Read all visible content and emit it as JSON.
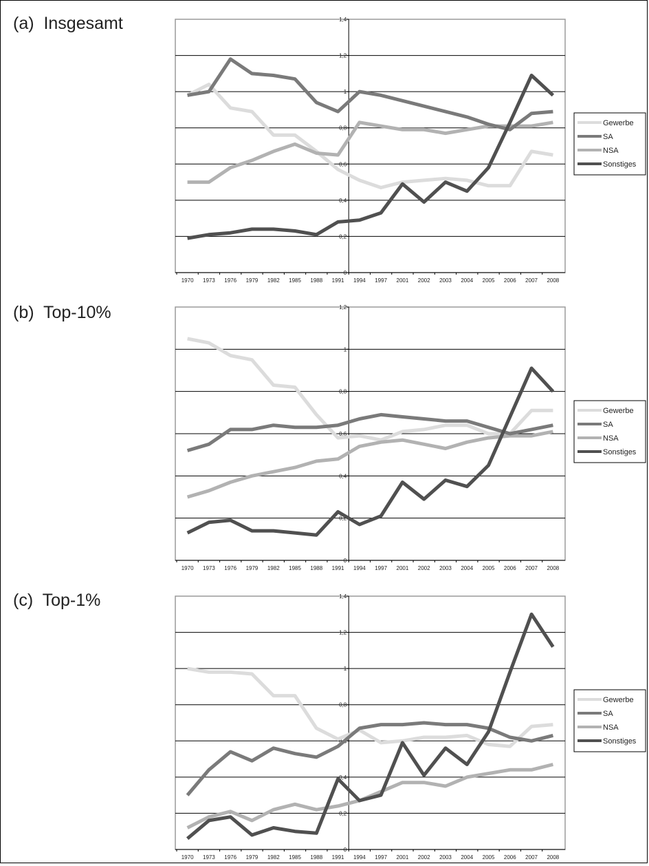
{
  "panels": [
    {
      "label": "(a)  Insgesamt"
    },
    {
      "label": "(b)  Top-10%"
    },
    {
      "label": "(c)  Top-1%"
    }
  ],
  "colors": {
    "Gewerbe": "#dcdcdc",
    "SA": "#7a7a7a",
    "NSA": "#b2b2b2",
    "Sonstiges": "#505050",
    "grid": "#000000",
    "border": "#9a9a9a"
  },
  "chart_data": [
    {
      "type": "line",
      "title": "",
      "ylim": [
        0,
        1.4
      ],
      "yticks": [
        "0",
        "0,2",
        "0,4",
        "0,6",
        "0,8",
        "1",
        "1,2",
        "1,4"
      ],
      "categories": [
        "1970",
        "1973",
        "1976",
        "1979",
        "1982",
        "1985",
        "1988",
        "1991",
        "1994",
        "1997",
        "2001",
        "2002",
        "2003",
        "2004",
        "2005",
        "2006",
        "2007",
        "2008"
      ],
      "grid": true,
      "legend": "right",
      "series": [
        {
          "name": "Gewerbe",
          "values": [
            0.98,
            1.04,
            0.91,
            0.89,
            0.76,
            0.76,
            0.67,
            0.57,
            0.51,
            0.47,
            0.5,
            0.51,
            0.52,
            0.51,
            0.48,
            0.48,
            0.67,
            0.65
          ]
        },
        {
          "name": "SA",
          "values": [
            0.98,
            1.0,
            1.18,
            1.1,
            1.09,
            1.07,
            0.94,
            0.89,
            1.0,
            0.98,
            0.95,
            0.92,
            0.89,
            0.86,
            0.82,
            0.79,
            0.88,
            0.89
          ]
        },
        {
          "name": "NSA",
          "values": [
            0.5,
            0.5,
            0.58,
            0.62,
            0.67,
            0.71,
            0.66,
            0.65,
            0.83,
            0.81,
            0.79,
            0.79,
            0.77,
            0.79,
            0.81,
            0.81,
            0.81,
            0.83
          ]
        },
        {
          "name": "Sonstiges",
          "values": [
            0.19,
            0.21,
            0.22,
            0.24,
            0.24,
            0.23,
            0.21,
            0.28,
            0.29,
            0.33,
            0.49,
            0.39,
            0.5,
            0.45,
            0.58,
            0.83,
            1.09,
            0.98
          ]
        }
      ]
    },
    {
      "type": "line",
      "title": "",
      "ylim": [
        0,
        1.2
      ],
      "yticks": [
        "0",
        "0,2",
        "0,4",
        "0,6",
        "0,8",
        "1",
        "1,2"
      ],
      "categories": [
        "1970",
        "1973",
        "1976",
        "1979",
        "1982",
        "1985",
        "1988",
        "1991",
        "1994",
        "1997",
        "2001",
        "2002",
        "2003",
        "2004",
        "2005",
        "2006",
        "2007",
        "2008"
      ],
      "grid": true,
      "legend": "right",
      "series": [
        {
          "name": "Gewerbe",
          "values": [
            1.05,
            1.03,
            0.97,
            0.95,
            0.83,
            0.82,
            0.69,
            0.58,
            0.59,
            0.57,
            0.61,
            0.62,
            0.64,
            0.64,
            0.6,
            0.6,
            0.71,
            0.71
          ]
        },
        {
          "name": "SA",
          "values": [
            0.52,
            0.55,
            0.62,
            0.62,
            0.64,
            0.63,
            0.63,
            0.64,
            0.67,
            0.69,
            0.68,
            0.67,
            0.66,
            0.66,
            0.63,
            0.6,
            0.62,
            0.64
          ]
        },
        {
          "name": "NSA",
          "values": [
            0.3,
            0.33,
            0.37,
            0.4,
            0.42,
            0.44,
            0.47,
            0.48,
            0.54,
            0.56,
            0.57,
            0.55,
            0.53,
            0.56,
            0.58,
            0.59,
            0.59,
            0.61
          ]
        },
        {
          "name": "Sonstiges",
          "values": [
            0.13,
            0.18,
            0.19,
            0.14,
            0.14,
            0.13,
            0.12,
            0.23,
            0.17,
            0.21,
            0.37,
            0.29,
            0.38,
            0.35,
            0.45,
            0.68,
            0.91,
            0.8
          ]
        }
      ]
    },
    {
      "type": "line",
      "title": "",
      "ylim": [
        0,
        1.4
      ],
      "yticks": [
        "0",
        "0,2",
        "0,4",
        "0,6",
        "0,8",
        "1",
        "1,2",
        "1,4"
      ],
      "categories": [
        "1970",
        "1973",
        "1976",
        "1979",
        "1982",
        "1985",
        "1988",
        "1991",
        "1994",
        "1997",
        "2001",
        "2002",
        "2003",
        "2004",
        "2005",
        "2006",
        "2007",
        "2008"
      ],
      "grid": true,
      "legend": "right",
      "series": [
        {
          "name": "Gewerbe",
          "values": [
            1.0,
            0.98,
            0.98,
            0.97,
            0.85,
            0.85,
            0.67,
            0.61,
            0.66,
            0.59,
            0.6,
            0.62,
            0.62,
            0.63,
            0.58,
            0.57,
            0.68,
            0.69
          ]
        },
        {
          "name": "SA",
          "values": [
            0.3,
            0.44,
            0.54,
            0.49,
            0.56,
            0.53,
            0.51,
            0.57,
            0.67,
            0.69,
            0.69,
            0.7,
            0.69,
            0.69,
            0.67,
            0.62,
            0.6,
            0.63
          ]
        },
        {
          "name": "NSA",
          "values": [
            0.12,
            0.18,
            0.21,
            0.16,
            0.22,
            0.25,
            0.22,
            0.24,
            0.27,
            0.32,
            0.37,
            0.37,
            0.35,
            0.4,
            0.42,
            0.44,
            0.44,
            0.47
          ]
        },
        {
          "name": "Sonstiges",
          "values": [
            0.06,
            0.16,
            0.18,
            0.08,
            0.12,
            0.1,
            0.09,
            0.39,
            0.27,
            0.3,
            0.59,
            0.41,
            0.56,
            0.47,
            0.65,
            0.98,
            1.3,
            1.12
          ]
        }
      ]
    }
  ]
}
